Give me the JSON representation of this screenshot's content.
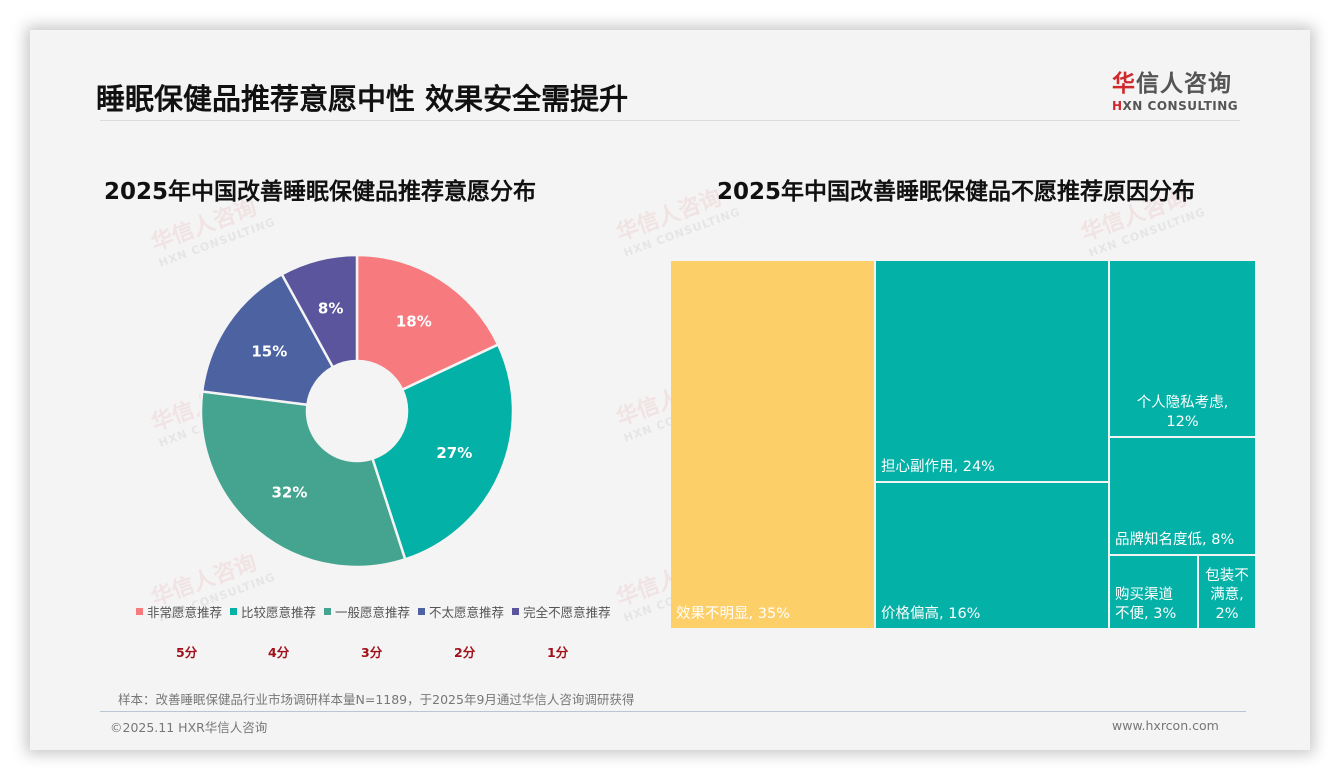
{
  "page": {
    "title": "睡眠保健品推荐意愿中性 效果安全需提升"
  },
  "logo": {
    "cn_red": "华",
    "cn_rest": "信人咨询",
    "en_red": "H",
    "en_rest": "XN CONSULTING"
  },
  "watermark": {
    "cn": "华信人咨询",
    "en": "HXN CONSULTING"
  },
  "colors": {
    "very_willing": "#f77b7e",
    "fairly_willing": "#03b1a7",
    "neutral": "#44a48f",
    "not_very_willing": "#4d62a0",
    "not_willing_at_all": "#5b559e",
    "treemap_highlight": "#fdcf69",
    "treemap_base": "#03b1a7",
    "score_text": "#a0101a"
  },
  "chart_data": [
    {
      "type": "pie",
      "subtype": "donut",
      "title": "2025年中国改善睡眠保健品推荐意愿分布",
      "categories": [
        "非常愿意推荐",
        "比较愿意推荐",
        "一般愿意推荐",
        "不太愿意推荐",
        "完全不愿意推荐"
      ],
      "values": [
        18,
        27,
        32,
        15,
        8
      ],
      "labels": [
        "18%",
        "27%",
        "32%",
        "15%",
        "8%"
      ],
      "scores": [
        "5分",
        "4分",
        "3分",
        "2分",
        "1分"
      ],
      "colors": [
        "#f77b7e",
        "#03b1a7",
        "#44a48f",
        "#4d62a0",
        "#5b559e"
      ],
      "legend_position": "bottom",
      "unit": "%"
    },
    {
      "type": "treemap",
      "title": "2025年中国改善睡眠保健品不愿推荐原因分布",
      "categories": [
        "效果不明显",
        "担心副作用",
        "价格偏高",
        "个人隐私考虑",
        "品牌知名度低",
        "购买渠道不便",
        "包装不满意"
      ],
      "values": [
        35,
        24,
        16,
        12,
        8,
        3,
        2
      ],
      "labels": [
        "效果不明显, 35%",
        "担心副作用, 24%",
        "价格偏高, 16%",
        "个人隐私考虑,\n12%",
        "品牌知名度低, 8%",
        "购买渠道\n不便, 3%",
        "包装不\n满意,\n2%"
      ],
      "unit": "%"
    }
  ],
  "footer": {
    "source": "样本：改善睡眠保健品行业市场调研样本量N=1189，于2025年9月通过华信人咨询调研获得",
    "copyright": "©2025.11 HXR华信人咨询",
    "website": "www.hxrcon.com"
  }
}
